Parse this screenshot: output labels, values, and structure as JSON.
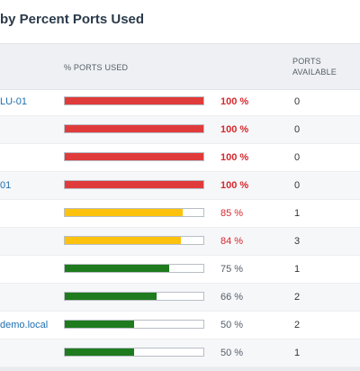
{
  "widget": {
    "title": "by Percent Ports Used"
  },
  "columns": {
    "percent_used": "% PORTS USED",
    "ports_available": "PORTS AVAILABLE"
  },
  "colors": {
    "critical": "#e03b3b",
    "warning": "#fcc20e",
    "ok": "#1e7b1e"
  },
  "rows": [
    {
      "name": "LU-01",
      "percent": 100,
      "percent_label": "100 %",
      "available": "0",
      "status": "critical"
    },
    {
      "name": "",
      "percent": 100,
      "percent_label": "100 %",
      "available": "0",
      "status": "critical"
    },
    {
      "name": "",
      "percent": 100,
      "percent_label": "100 %",
      "available": "0",
      "status": "critical"
    },
    {
      "name": "01",
      "percent": 100,
      "percent_label": "100 %",
      "available": "0",
      "status": "critical"
    },
    {
      "name": "",
      "percent": 85,
      "percent_label": "85 %",
      "available": "1",
      "status": "warning"
    },
    {
      "name": "",
      "percent": 84,
      "percent_label": "84 %",
      "available": "3",
      "status": "warning"
    },
    {
      "name": "",
      "percent": 75,
      "percent_label": "75 %",
      "available": "1",
      "status": "ok"
    },
    {
      "name": "",
      "percent": 66,
      "percent_label": "66 %",
      "available": "2",
      "status": "ok"
    },
    {
      "name": "demo.local",
      "percent": 50,
      "percent_label": "50 %",
      "available": "2",
      "status": "ok"
    },
    {
      "name": "",
      "percent": 50,
      "percent_label": "50 %",
      "available": "1",
      "status": "ok"
    }
  ]
}
